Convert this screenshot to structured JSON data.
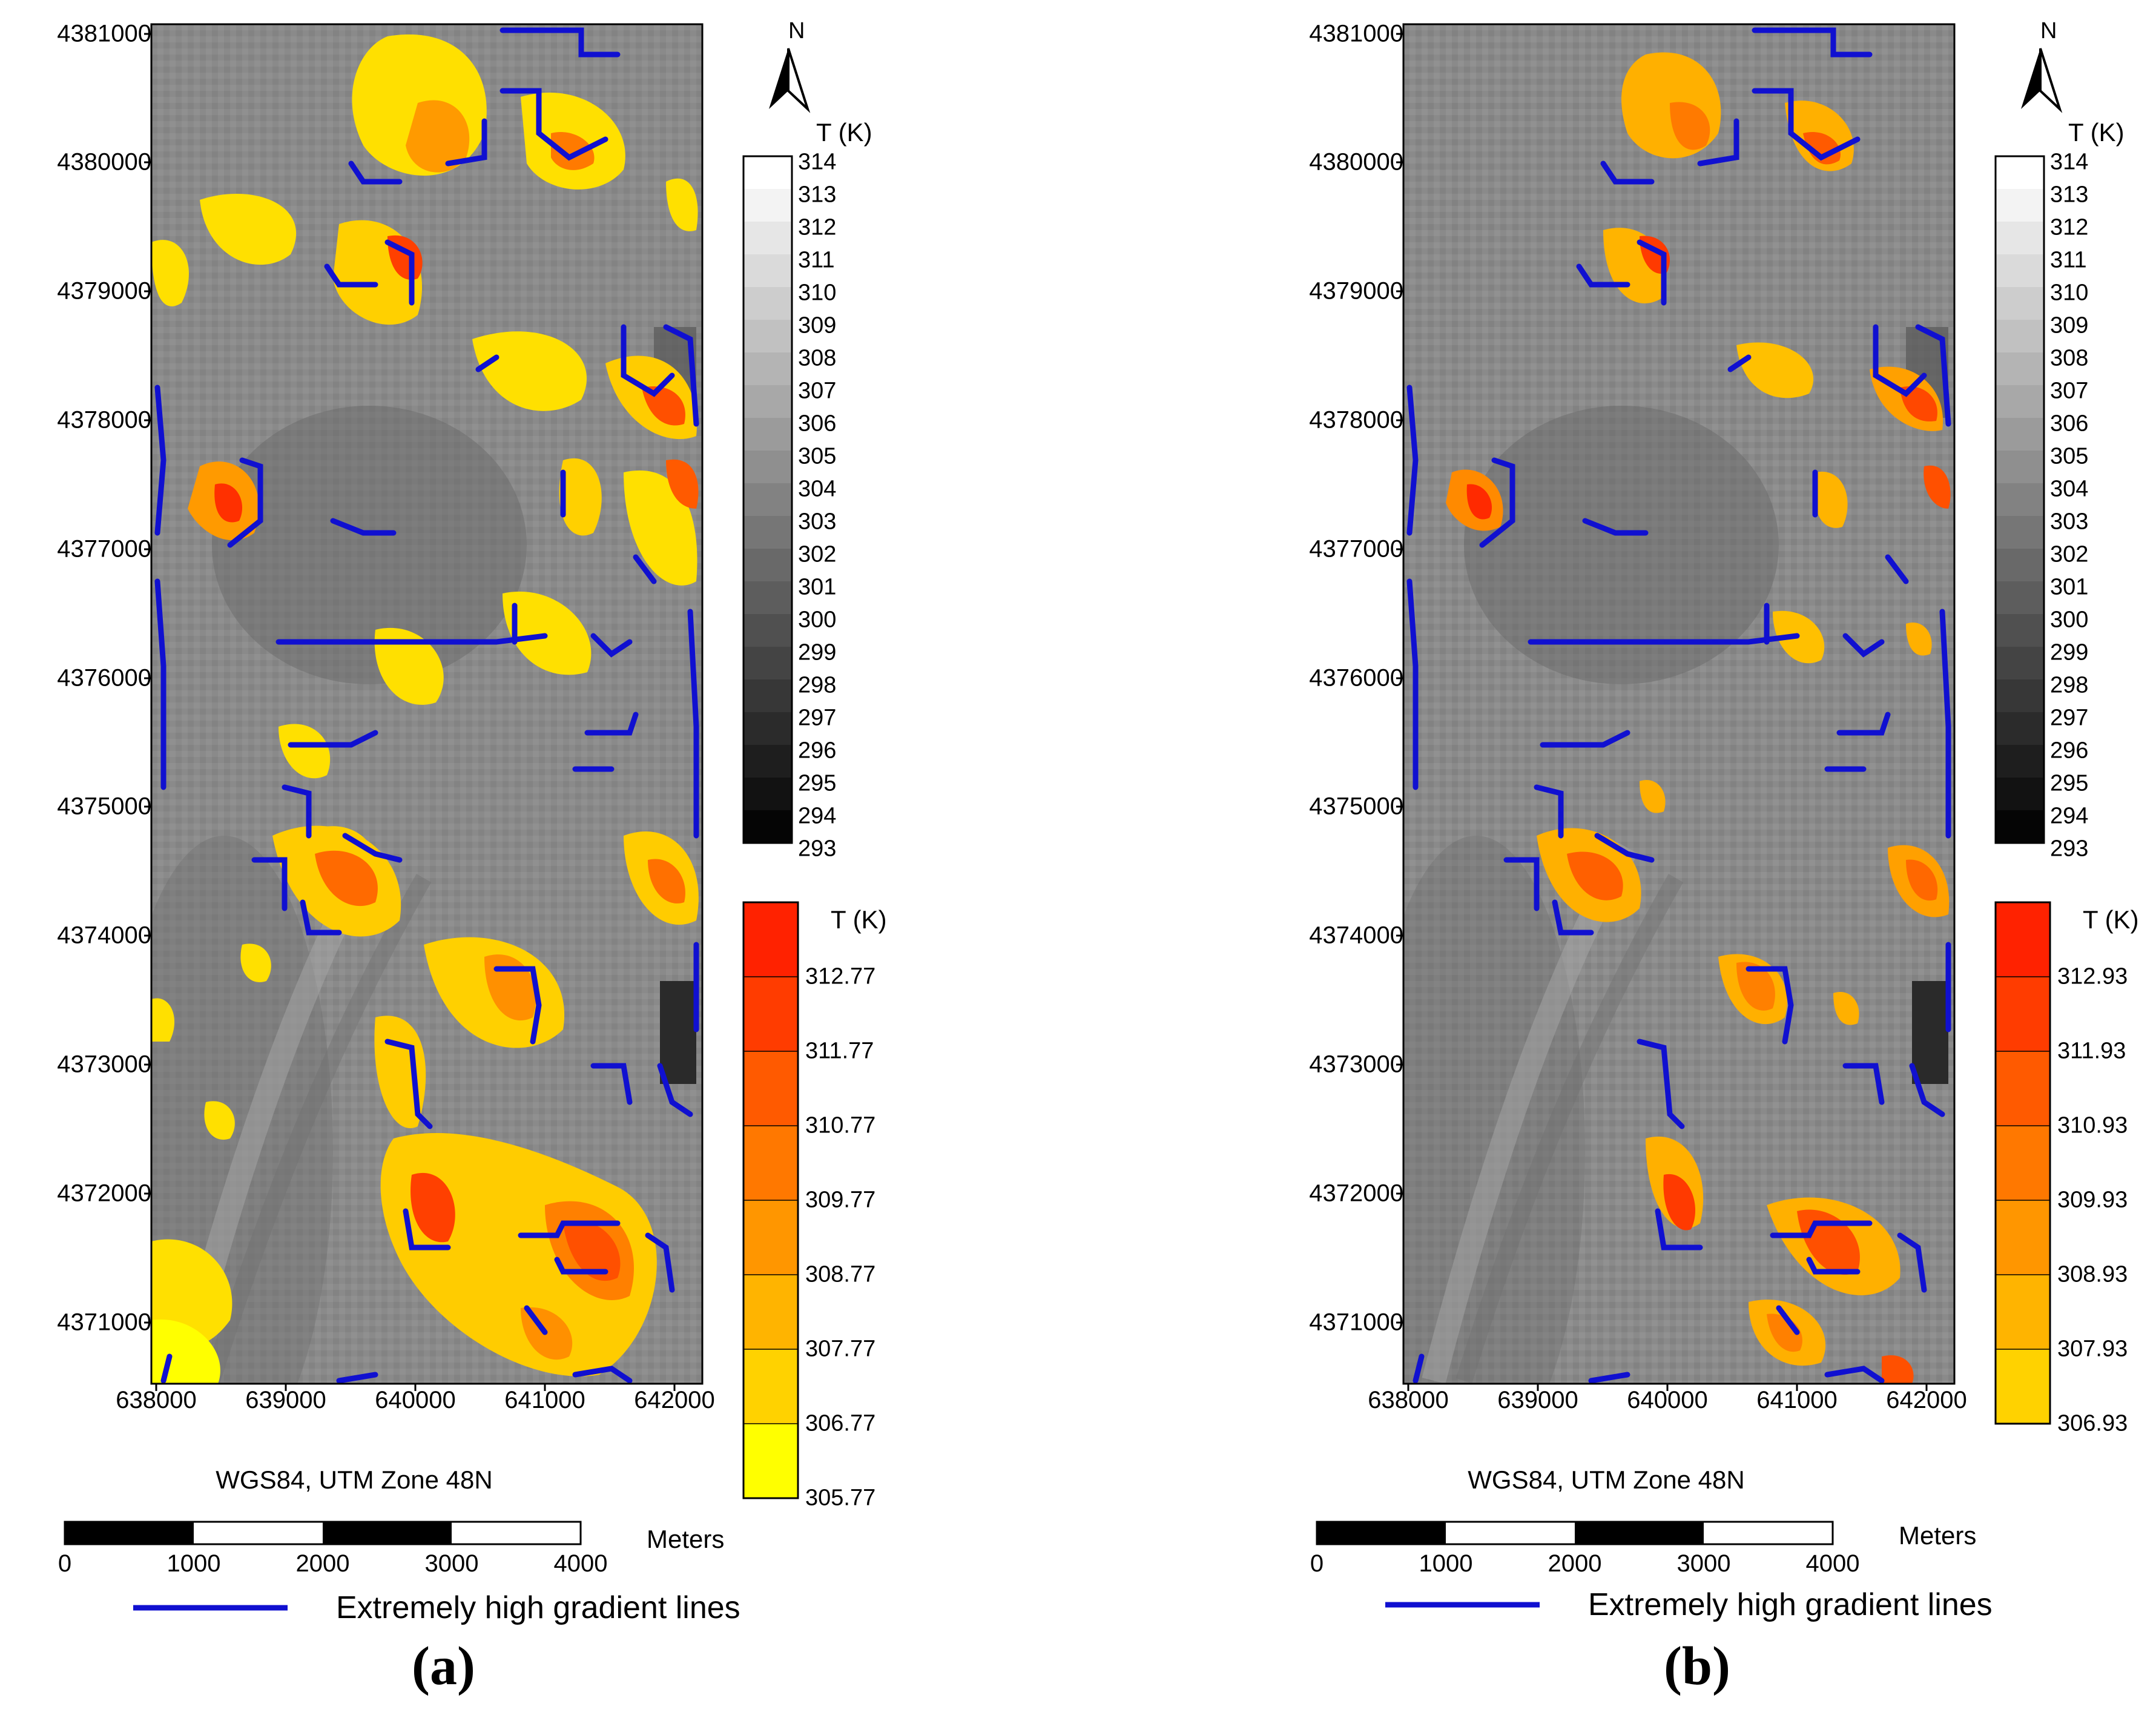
{
  "panels": [
    {
      "id": "a",
      "caption": "(a)",
      "crs_label": "WGS84, UTM Zone 48N",
      "north_label": "N",
      "x_ticks": [
        "638000",
        "639000",
        "640000",
        "641000",
        "642000"
      ],
      "y_ticks": [
        "4381000",
        "4380000",
        "4379000",
        "4378000",
        "4377000",
        "4376000",
        "4375000",
        "4374000",
        "4373000",
        "4372000",
        "4371000"
      ],
      "gray_colorbar": {
        "title": "T (K)",
        "labels": [
          "314",
          "313",
          "312",
          "311",
          "310",
          "309",
          "308",
          "307",
          "306",
          "305",
          "304",
          "303",
          "302",
          "301",
          "300",
          "299",
          "298",
          "297",
          "296",
          "295",
          "294",
          "293"
        ]
      },
      "hot_colorbar": {
        "title": "T (K)",
        "labels": [
          "312.77",
          "311.77",
          "310.77",
          "309.77",
          "308.77",
          "307.77",
          "306.77",
          "305.77"
        ],
        "colors": [
          "#ff2200",
          "#ff3c00",
          "#ff5a00",
          "#ff7800",
          "#ff9600",
          "#ffb400",
          "#ffd200",
          "#ffff00"
        ]
      },
      "scale_bar": {
        "ticks": [
          "0",
          "1000",
          "2000",
          "3000",
          "4000"
        ],
        "unit": "Meters"
      },
      "legend": {
        "label": "Extremely high gradient lines",
        "color": "#1010d0"
      }
    },
    {
      "id": "b",
      "caption": "(b)",
      "crs_label": "WGS84, UTM Zone 48N",
      "north_label": "N",
      "x_ticks": [
        "638000",
        "639000",
        "640000",
        "641000",
        "642000"
      ],
      "y_ticks": [
        "4381000",
        "4380000",
        "4379000",
        "4378000",
        "4377000",
        "4376000",
        "4375000",
        "4374000",
        "4373000",
        "4372000",
        "4371000"
      ],
      "gray_colorbar": {
        "title": "T (K)",
        "labels": [
          "314",
          "313",
          "312",
          "311",
          "310",
          "309",
          "308",
          "307",
          "306",
          "305",
          "304",
          "303",
          "302",
          "301",
          "300",
          "299",
          "298",
          "297",
          "296",
          "295",
          "294",
          "293"
        ]
      },
      "hot_colorbar": {
        "title": "T (K)",
        "labels": [
          "312.93",
          "311.93",
          "310.93",
          "309.93",
          "308.93",
          "307.93",
          "306.93"
        ],
        "colors": [
          "#ff2200",
          "#ff3c00",
          "#ff5a00",
          "#ff7800",
          "#ff9600",
          "#ffb400",
          "#ffd200"
        ]
      },
      "scale_bar": {
        "ticks": [
          "0",
          "1000",
          "2000",
          "3000",
          "4000"
        ],
        "unit": "Meters"
      },
      "legend": {
        "label": "Extremely high gradient lines",
        "color": "#1010d0"
      }
    }
  ],
  "colors": {
    "gradient_line": "#1010d0",
    "hot_low": "#ffe000",
    "hot_mid": "#ff9a00",
    "hot_high": "#ff3000"
  }
}
